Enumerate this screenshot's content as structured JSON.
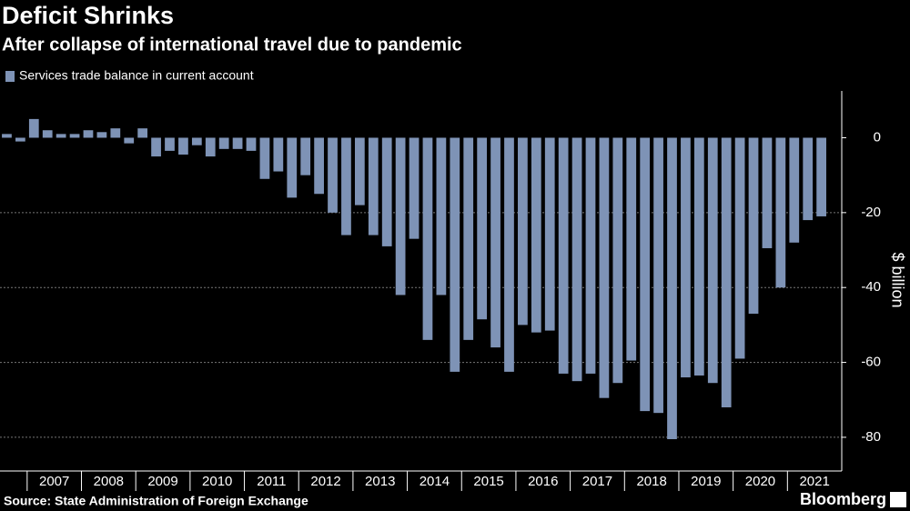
{
  "chart_data": {
    "type": "bar",
    "title": "Deficit Shrinks",
    "subtitle": "After collapse of international travel due to pandemic",
    "series": [
      {
        "name": "Services trade balance in current account",
        "color": "#7e93b6",
        "values": [
          1,
          -1,
          5,
          2,
          1,
          1,
          2,
          1.5,
          2.5,
          -1.5,
          2.5,
          -5,
          -3.5,
          -4.5,
          -2,
          -5,
          -3,
          -3,
          -3.5,
          -11,
          -9,
          -16,
          -10,
          -15,
          -20,
          -26,
          -18,
          -26,
          -29,
          -42,
          -27,
          -54,
          -42,
          -62.5,
          -54,
          -48.5,
          -56,
          -62.5,
          -50,
          -52,
          -51.5,
          -63,
          -65,
          -63,
          -69.5,
          -65.5,
          -59.5,
          -73,
          -73.5,
          -80.5,
          -64,
          -63.5,
          -65.5,
          -72,
          -59,
          -47,
          -29.5,
          -40,
          -28,
          -22,
          -21
        ]
      }
    ],
    "categories": [
      null,
      null,
      "2007",
      null,
      null,
      null,
      "2008",
      null,
      null,
      null,
      "2009",
      null,
      null,
      null,
      "2010",
      null,
      null,
      null,
      "2011",
      null,
      null,
      null,
      "2012",
      null,
      null,
      null,
      "2013",
      null,
      null,
      null,
      "2014",
      null,
      null,
      null,
      "2015",
      null,
      null,
      null,
      "2016",
      null,
      null,
      null,
      "2017",
      null,
      null,
      null,
      "2018",
      null,
      null,
      null,
      "2019",
      null,
      null,
      null,
      "2020",
      null,
      null,
      null,
      "2021",
      null,
      null
    ],
    "ylabel": "$ billion",
    "ylim": [
      -89,
      12.5
    ],
    "yticks": [
      0,
      -20,
      -40,
      -60,
      -80
    ],
    "grid": true,
    "source": "Source: State Administration of Foreign Exchange",
    "brand": "Bloomberg"
  }
}
